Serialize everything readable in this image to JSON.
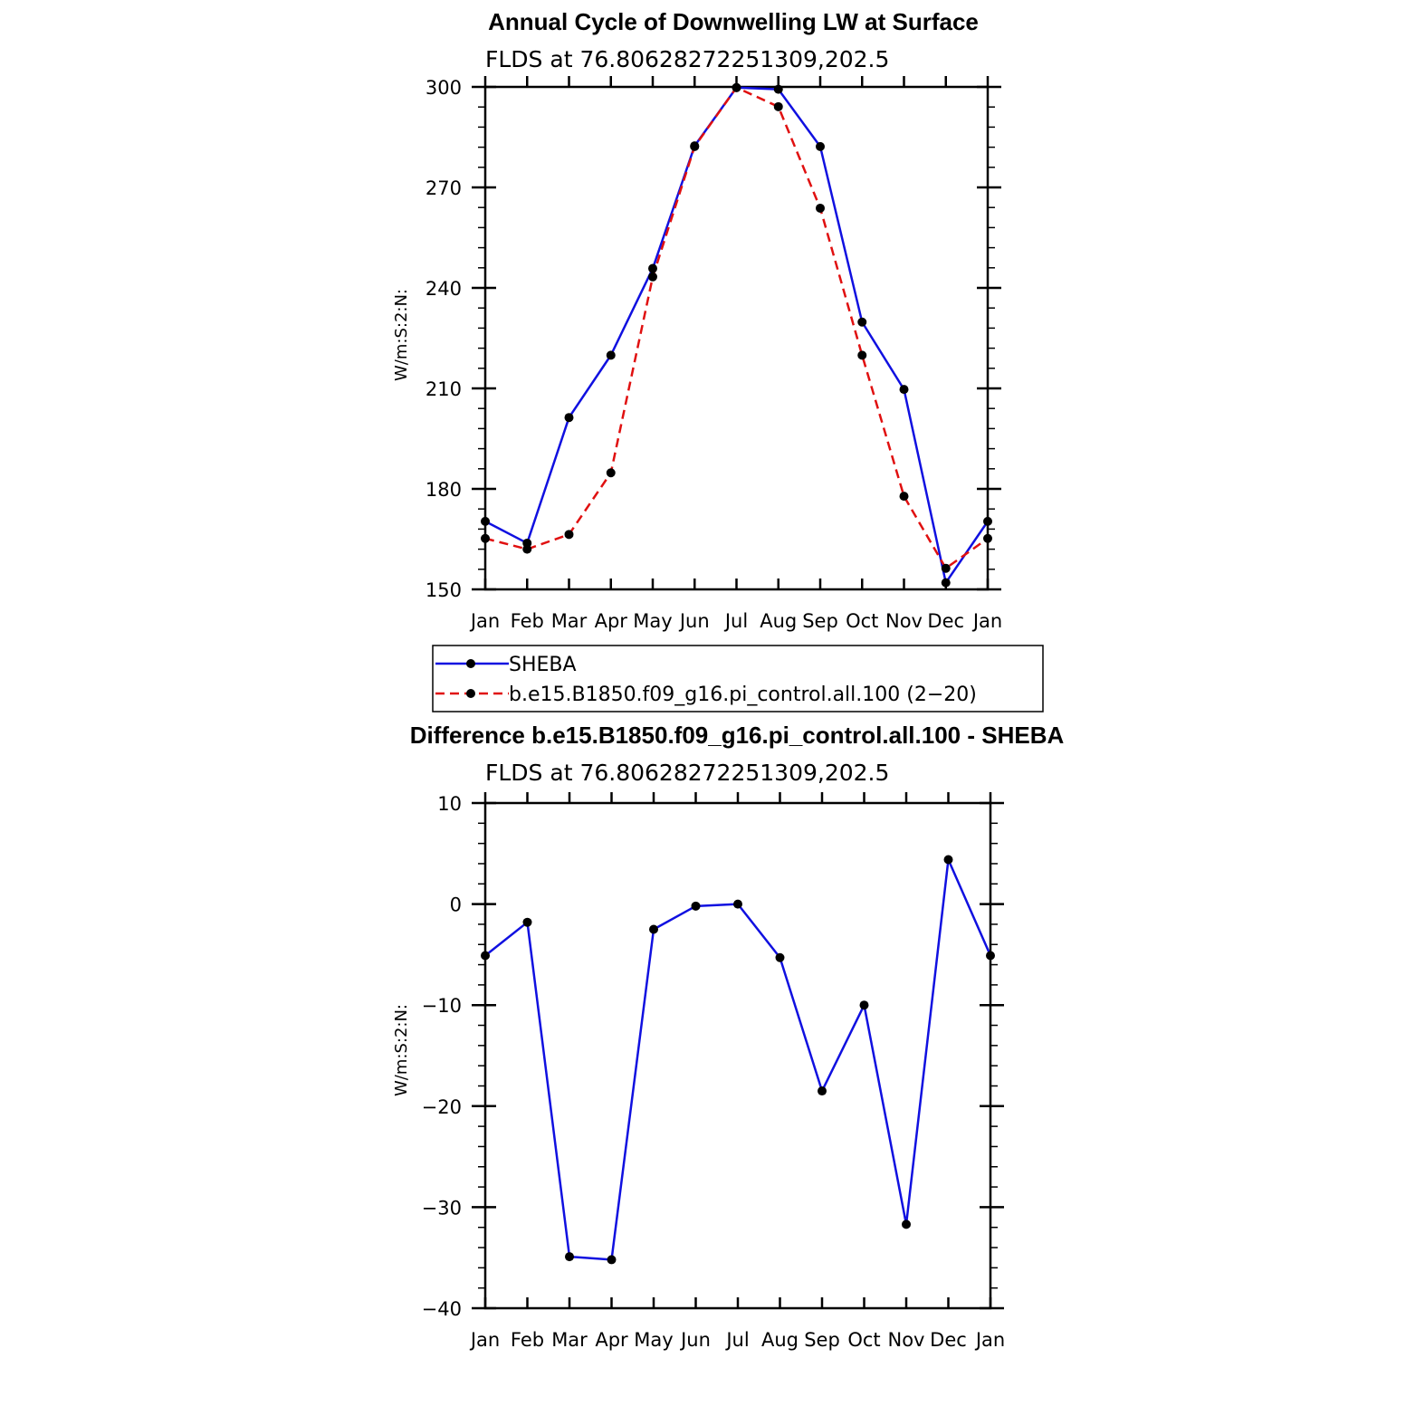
{
  "chart_data": [
    {
      "type": "line",
      "title": "Annual Cycle of Downwelling LW at Surface",
      "subtitle": "FLDS at 76.80628272251309,202.5",
      "ylabel": "W/m:S:2:N:",
      "xlabel": "",
      "categories": [
        "Jan",
        "Feb",
        "Mar",
        "Apr",
        "May",
        "Jun",
        "Jul",
        "Aug",
        "Sep",
        "Oct",
        "Nov",
        "Dec",
        "Jan"
      ],
      "ylim": [
        150,
        300
      ],
      "yticks": [
        "150",
        "180",
        "210",
        "240",
        "270",
        "300"
      ],
      "series": [
        {
          "name": "SHEBA",
          "color": "#1010e0",
          "dash": "solid",
          "values": [
            170.3,
            163.8,
            201.3,
            219.9,
            245.8,
            282.4,
            299.8,
            299.3,
            282.2,
            229.8,
            209.7,
            152.0,
            170.3
          ]
        },
        {
          "name": "b.e15.B1850.f09_g16.pi_control.all.100 (2−20)",
          "color": "#e01010",
          "dash": "dashed",
          "values": [
            165.2,
            162.0,
            166.4,
            184.8,
            243.3,
            282.2,
            299.8,
            294.1,
            263.8,
            219.9,
            177.8,
            156.3,
            165.2
          ]
        }
      ],
      "legend": "below"
    },
    {
      "type": "line",
      "title": "Difference b.e15.B1850.f09_g16.pi_control.all.100 - SHEBA",
      "subtitle": "FLDS at 76.80628272251309,202.5",
      "ylabel": "W/m:S:2:N:",
      "xlabel": "",
      "categories": [
        "Jan",
        "Feb",
        "Mar",
        "Apr",
        "May",
        "Jun",
        "Jul",
        "Aug",
        "Sep",
        "Oct",
        "Nov",
        "Dec",
        "Jan"
      ],
      "ylim": [
        -40,
        10
      ],
      "yticks": [
        "−40",
        "−30",
        "−20",
        "−10",
        "0",
        "10"
      ],
      "series": [
        {
          "color": "#1010e0",
          "dash": "solid",
          "values": [
            -5.1,
            -1.8,
            -34.9,
            -35.2,
            -2.5,
            -0.2,
            0.0,
            -5.3,
            -18.5,
            -10.0,
            -31.7,
            4.4,
            -5.1
          ]
        }
      ]
    }
  ]
}
